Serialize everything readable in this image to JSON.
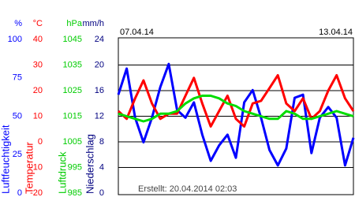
{
  "chart_data": {
    "type": "line",
    "x_labels": [
      "07.04.14",
      "13.04.14"
    ],
    "footer": "Erstellt: 20.04.2014 02:03",
    "xlim": [
      0,
      168
    ],
    "grid": true,
    "grid_axis": 1,
    "axes": [
      {
        "unit": "%",
        "label": "Luftfeuchtigkeit",
        "color": "#0000ff",
        "ylim": [
          0,
          100
        ],
        "yticks": [
          100,
          75,
          50,
          25,
          0
        ]
      },
      {
        "unit": "°C",
        "label": "Temperatur",
        "color": "#ff0000",
        "ylim": [
          -20,
          40
        ],
        "yticks": [
          40,
          30,
          20,
          10,
          0,
          -10,
          -20
        ]
      },
      {
        "unit": "hPa",
        "label": "Luftdruck",
        "color": "#00cc00",
        "ylim": [
          985,
          1045
        ],
        "yticks": [
          1045,
          1035,
          1025,
          1015,
          1005,
          995,
          985
        ]
      },
      {
        "unit": "mm/h",
        "label": "Niederschlag",
        "color": "#000080",
        "ylim": [
          0,
          24
        ],
        "yticks": [
          24,
          20,
          16,
          12,
          8,
          4,
          0
        ]
      }
    ],
    "x": [
      0,
      6,
      12,
      18,
      24,
      30,
      36,
      42,
      48,
      54,
      60,
      66,
      72,
      78,
      84,
      90,
      96,
      102,
      108,
      114,
      120,
      126,
      132,
      138,
      144,
      150,
      156,
      162,
      168
    ],
    "series": [
      {
        "name": "Luftfeuchtigkeit",
        "axis": 0,
        "color": "#0000ff",
        "values": [
          64,
          81,
          49,
          33,
          49,
          69,
          84,
          54,
          49,
          59,
          38,
          21,
          31,
          38,
          23,
          59,
          67,
          49,
          28,
          18,
          29,
          62,
          64,
          26,
          49,
          56,
          49,
          18,
          36
        ]
      },
      {
        "name": "Temperatur",
        "axis": 1,
        "color": "#ff0000",
        "values": [
          12,
          9,
          17,
          24,
          15,
          9,
          11,
          11,
          18,
          25,
          15,
          6,
          12,
          18,
          9,
          6,
          15,
          16,
          21,
          26,
          15,
          12,
          17,
          9,
          12,
          20,
          26,
          17,
          12
        ]
      },
      {
        "name": "Luftdruck",
        "axis": 2,
        "color": "#00dd00",
        "values": [
          1016,
          1015,
          1014,
          1013,
          1014,
          1016,
          1016,
          1017,
          1020,
          1022,
          1023,
          1023,
          1022,
          1020,
          1019,
          1017,
          1016,
          1015,
          1014,
          1014,
          1017,
          1016,
          1014,
          1014,
          1015,
          1016,
          1017,
          1016,
          1015
        ]
      }
    ]
  }
}
